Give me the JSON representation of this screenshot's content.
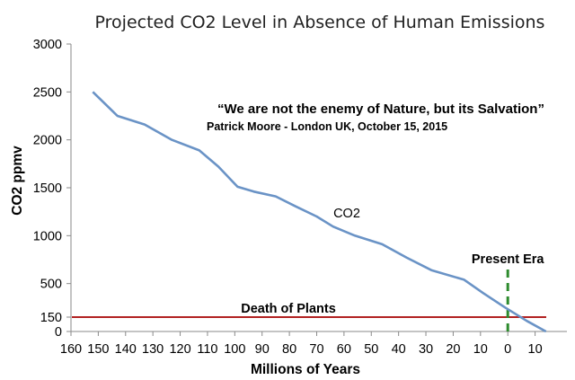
{
  "chart_data": {
    "type": "line",
    "title": "Projected CO2 Level in Absence of Human Emissions",
    "xlabel": "Millions of Years",
    "ylabel": "CO2 ppmv",
    "x_direction": "reversed",
    "xlim": [
      160,
      -15
    ],
    "ylim": [
      0,
      3000
    ],
    "x_ticks": [
      "160",
      "150",
      "140",
      "130",
      "120",
      "110",
      "100",
      "90",
      "80",
      "70",
      "60",
      "50",
      "40",
      "30",
      "20",
      "10",
      "0",
      "10"
    ],
    "y_ticks": [
      "0",
      "150",
      "500",
      "1000",
      "1500",
      "2000",
      "2500",
      "3000"
    ],
    "grid": false,
    "series": [
      {
        "name": "CO2",
        "color": "#6a93c6",
        "x": [
          152,
          143,
          133,
          123,
          113,
          106,
          99,
          93,
          85,
          78,
          70,
          64,
          56,
          46,
          37,
          28,
          16,
          9,
          1,
          -7,
          -14
        ],
        "y": [
          2500,
          2250,
          2160,
          2000,
          1890,
          1720,
          1510,
          1460,
          1410,
          1310,
          1200,
          1095,
          1000,
          910,
          770,
          640,
          540,
          400,
          250,
          110,
          0
        ]
      }
    ],
    "reference_lines": [
      {
        "label": "Death of Plants",
        "orientation": "horizontal",
        "value": 150,
        "color": "#b22222"
      },
      {
        "label": "Present Era",
        "orientation": "vertical",
        "value": 0,
        "color": "#2e8b2e",
        "dashed": true
      }
    ],
    "annotations": {
      "series_label": "CO2",
      "quote": "“We are not the enemy of Nature, but its Salvation”",
      "attribution": "Patrick Moore - London UK, October 15, 2015"
    }
  }
}
